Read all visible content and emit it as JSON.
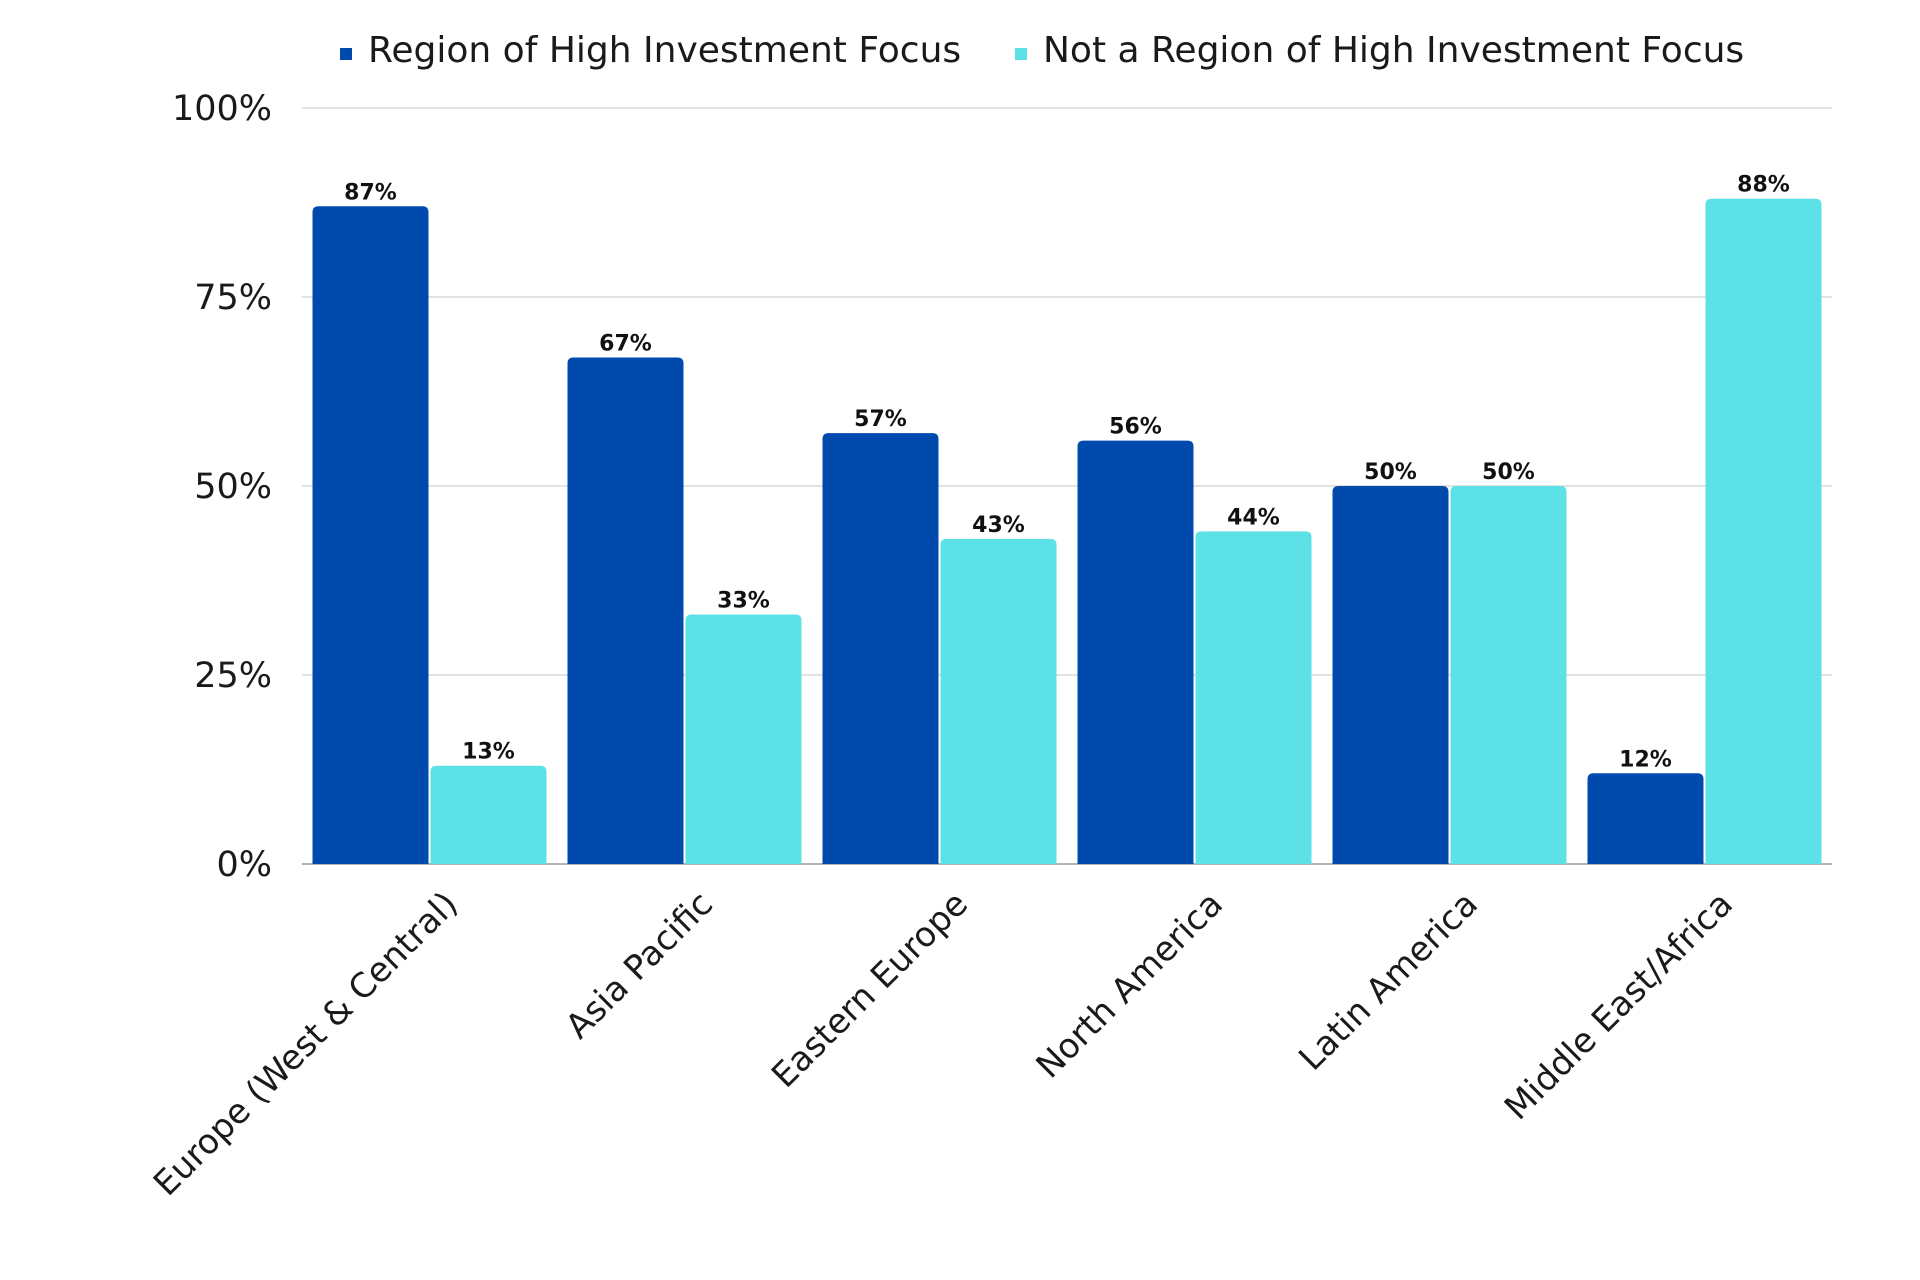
{
  "chart_data": {
    "type": "bar",
    "categories": [
      "Europe (West & Central)",
      "Asia Pacific",
      "Eastern Europe",
      "North America",
      "Latin America",
      "Middle East/Africa"
    ],
    "series": [
      {
        "name": "Region of High Investment Focus",
        "values": [
          87,
          67,
          57,
          56,
          50,
          12
        ],
        "labels": [
          "87%",
          "67%",
          "57%",
          "56%",
          "50%",
          "12%"
        ],
        "color": "#004AAD"
      },
      {
        "name": "Not a Region of High Investment Focus",
        "values": [
          13,
          33,
          43,
          44,
          50,
          88
        ],
        "labels": [
          "13%",
          "33%",
          "43%",
          "44%",
          "50%",
          "88%"
        ],
        "color": "#5CE1E6"
      }
    ],
    "ylim": [
      0,
      100
    ],
    "yticks": [
      0,
      25,
      50,
      75,
      100
    ],
    "ytick_labels": [
      "0%",
      "25%",
      "50%",
      "75%",
      "100%"
    ],
    "grid": true,
    "legend_position": "top"
  }
}
